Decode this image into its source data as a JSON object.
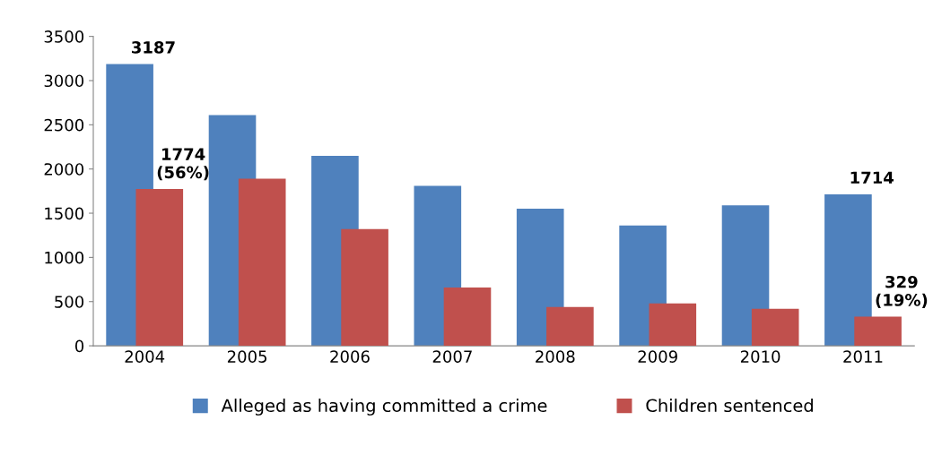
{
  "chart_data": {
    "type": "bar",
    "categories": [
      "2004",
      "2005",
      "2006",
      "2007",
      "2008",
      "2009",
      "2010",
      "2011"
    ],
    "series": [
      {
        "name": "Alleged as having committed a crime",
        "color": "#4f81bd",
        "values": [
          3187,
          2610,
          2150,
          1810,
          1550,
          1360,
          1590,
          1714
        ],
        "value_labels": [
          "3187",
          null,
          null,
          null,
          null,
          null,
          null,
          "1714"
        ]
      },
      {
        "name": "Children sentenced",
        "color": "#c0504d",
        "values": [
          1774,
          1890,
          1320,
          660,
          440,
          480,
          420,
          329
        ],
        "value_labels": [
          "1774\n(56%)",
          null,
          null,
          null,
          null,
          null,
          null,
          "329\n(19%)"
        ]
      }
    ],
    "ylim": [
      0,
      3500
    ],
    "yticks": [
      0,
      500,
      1000,
      1500,
      2000,
      2500,
      3000,
      3500
    ],
    "grid": false,
    "legend": "bottom"
  }
}
